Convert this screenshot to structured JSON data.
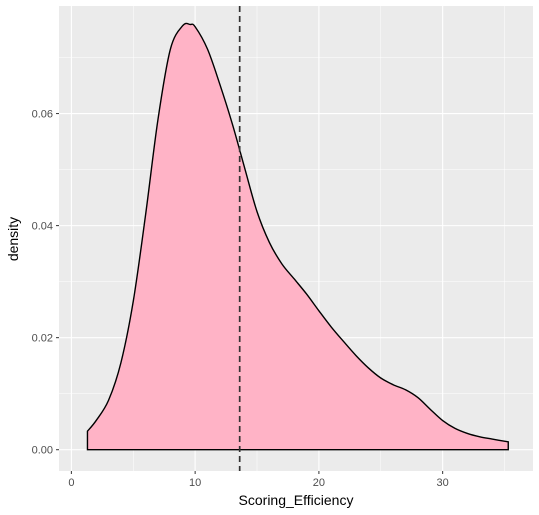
{
  "chart_data": {
    "type": "area",
    "title": "",
    "xlabel": "Scoring_Efficiency",
    "ylabel": "density",
    "xlim": [
      -1,
      37.3
    ],
    "ylim": [
      -0.0038,
      0.0792
    ],
    "x_ticks": [
      0,
      10,
      20,
      30
    ],
    "x_tick_labels": [
      "0",
      "10",
      "20",
      "30"
    ],
    "y_ticks": [
      0.0,
      0.02,
      0.04,
      0.06
    ],
    "y_tick_labels": [
      "0.00",
      "0.02",
      "0.04",
      "0.06"
    ],
    "grid": true,
    "legend": "none",
    "series": [
      {
        "x": [
          1.3,
          2.0,
          3.0,
          4.0,
          5.0,
          6.0,
          7.0,
          8.0,
          9.0,
          9.6,
          10.0,
          11.0,
          12.0,
          13.0,
          14.0,
          15.0,
          16.0,
          17.0,
          18.0,
          19.0,
          20.0,
          21.0,
          22.0,
          23.0,
          24.0,
          25.0,
          26.0,
          27.0,
          28.0,
          29.0,
          30.0,
          31.0,
          32.0,
          33.0,
          34.0,
          35.3
        ],
        "y": [
          0.0033,
          0.0052,
          0.0088,
          0.0155,
          0.0265,
          0.042,
          0.059,
          0.0715,
          0.0757,
          0.0759,
          0.0755,
          0.0715,
          0.0652,
          0.0582,
          0.0503,
          0.0425,
          0.037,
          0.0332,
          0.0305,
          0.0278,
          0.0248,
          0.0219,
          0.0193,
          0.0168,
          0.0146,
          0.0128,
          0.0116,
          0.0107,
          0.0093,
          0.0072,
          0.0052,
          0.0038,
          0.0029,
          0.0023,
          0.0019,
          0.0014
        ]
      }
    ],
    "vline": {
      "x": 13.6,
      "style": "dashed"
    },
    "colors": {
      "fill": "#ffb3c6",
      "outline": "#000000",
      "panel": "#ebebeb",
      "grid": "#ffffff",
      "vline": "#333333"
    }
  }
}
